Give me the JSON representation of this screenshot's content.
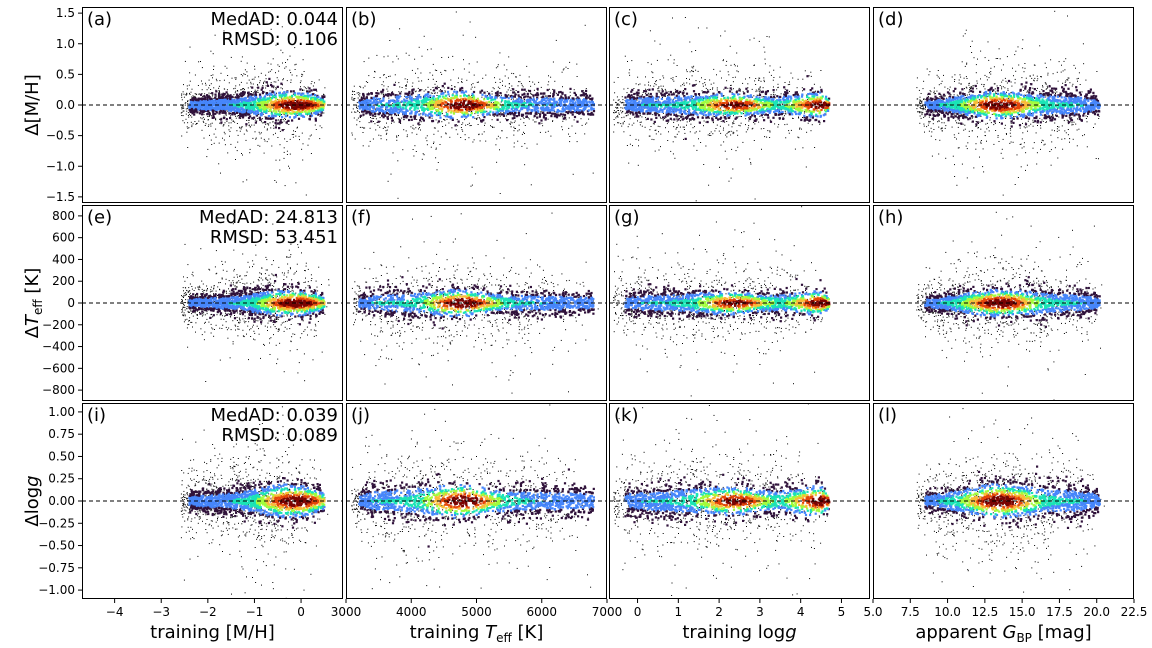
{
  "chart_data": {
    "type": "scatter",
    "description_kind": "3x4 grid of residual density scatter plots",
    "colormap": [
      "#30123b",
      "#4686fb",
      "#1ae4b6",
      "#a2fc3c",
      "#fabb39",
      "#e4460a",
      "#7a0403"
    ],
    "columns": [
      {
        "id": "mh",
        "xlabel_main": "training [M/H]",
        "xlabel_pre": "training [M/H]",
        "xlabel_sym": "",
        "xlabel_sub": "",
        "xlabel_post": "",
        "xlim": [
          -4.7,
          0.9
        ],
        "xticks": [
          -4,
          -3,
          -2,
          -1,
          0
        ],
        "xticklabels": [
          "−4",
          "−3",
          "−2",
          "−1",
          "0"
        ]
      },
      {
        "id": "teff",
        "xlabel_pre": "training ",
        "xlabel_sym": "T",
        "xlabel_sub": "eff",
        "xlabel_post": " [K]",
        "xlim": [
          3000,
          7000
        ],
        "xticks": [
          3000,
          4000,
          5000,
          6000,
          7000
        ],
        "xticklabels": [
          "3000",
          "4000",
          "5000",
          "6000",
          "7000"
        ]
      },
      {
        "id": "logg",
        "xlabel_pre": "training log",
        "xlabel_sym": "g",
        "xlabel_sub": "",
        "xlabel_post": "",
        "xlim": [
          -0.7,
          5.7
        ],
        "xticks": [
          0,
          1,
          2,
          3,
          4,
          5
        ],
        "xticklabels": [
          "0",
          "1",
          "2",
          "3",
          "4",
          "5"
        ]
      },
      {
        "id": "gbp",
        "xlabel_pre": "apparent ",
        "xlabel_sym": "G",
        "xlabel_sub": "BP",
        "xlabel_post": " [mag]",
        "xlim": [
          5.0,
          22.5
        ],
        "xticks": [
          5.0,
          7.5,
          10.0,
          12.5,
          15.0,
          17.5,
          20.0,
          22.5
        ],
        "xticklabels": [
          "5.0",
          "7.5",
          "10.0",
          "12.5",
          "15.0",
          "17.5",
          "20.0",
          "22.5"
        ]
      }
    ],
    "rows": [
      {
        "id": "dmh",
        "ylabel_pre": "Δ[M/H]",
        "ylabel_sym": "",
        "ylabel_sub": "",
        "ylabel_post": "",
        "ylim": [
          -1.6,
          1.6
        ],
        "yticks": [
          -1.5,
          -1.0,
          -0.5,
          0.0,
          0.5,
          1.0,
          1.5
        ],
        "yticklabels": [
          "−1.5",
          "−1.0",
          "−0.5",
          "0.0",
          "0.5",
          "1.0",
          "1.5"
        ],
        "med_ad": "MedAD: 0.044",
        "rmsd": "RMSD: 0.106",
        "scale": 0.1
      },
      {
        "id": "dteff",
        "ylabel_pre": "Δ",
        "ylabel_sym": "T",
        "ylabel_sub": "eff",
        "ylabel_post": " [K]",
        "ylim": [
          -900,
          900
        ],
        "yticks": [
          -800,
          -600,
          -400,
          -200,
          0,
          200,
          400,
          600,
          800
        ],
        "yticklabels": [
          "−800",
          "−600",
          "−400",
          "−200",
          "0",
          "200",
          "400",
          "600",
          "800"
        ],
        "med_ad": "MedAD: 24.813",
        "rmsd": "RMSD: 53.451",
        "scale": 55
      },
      {
        "id": "dlogg",
        "ylabel_pre": "Δlog",
        "ylabel_sym": "g",
        "ylabel_sub": "",
        "ylabel_post": "",
        "ylim": [
          -1.1,
          1.1
        ],
        "yticks": [
          -1.0,
          -0.75,
          -0.5,
          -0.25,
          0.0,
          0.25,
          0.5,
          0.75,
          1.0
        ],
        "yticklabels": [
          "−1.00",
          "−0.75",
          "−0.50",
          "−0.25",
          "0.00",
          "0.25",
          "0.50",
          "0.75",
          "1.00"
        ],
        "med_ad": "MedAD: 0.039",
        "rmsd": "RMSD: 0.089",
        "scale": 0.085
      }
    ],
    "panel_letters": [
      "(a)",
      "(b)",
      "(c)",
      "(d)",
      "(e)",
      "(f)",
      "(g)",
      "(h)",
      "(i)",
      "(j)",
      "(k)",
      "(l)"
    ],
    "reference_line": {
      "y": 0,
      "style": "dashed"
    },
    "density_envelopes": {
      "mh": [
        [
          -2.4,
          0.25
        ],
        [
          -2.1,
          0.45
        ],
        [
          -1.5,
          0.6
        ],
        [
          -1.0,
          0.85
        ],
        [
          -0.5,
          1.0
        ],
        [
          0.0,
          0.9
        ],
        [
          0.3,
          0.7
        ],
        [
          0.5,
          0.35
        ]
      ],
      "teff": [
        [
          3200,
          0.3
        ],
        [
          3400,
          0.8
        ],
        [
          4000,
          1.0
        ],
        [
          4800,
          1.0
        ],
        [
          5200,
          0.7
        ],
        [
          5800,
          0.75
        ],
        [
          6400,
          0.7
        ],
        [
          6800,
          0.55
        ]
      ],
      "logg": [
        [
          -0.3,
          0.5
        ],
        [
          0.2,
          0.8
        ],
        [
          1.0,
          0.9
        ],
        [
          2.4,
          0.8
        ],
        [
          3.0,
          0.6
        ],
        [
          4.0,
          0.8
        ],
        [
          4.5,
          0.9
        ],
        [
          4.7,
          0.2
        ]
      ],
      "gbp": [
        [
          8.5,
          0.3
        ],
        [
          9.5,
          0.55
        ],
        [
          11.0,
          0.8
        ],
        [
          13.0,
          1.0
        ],
        [
          16.0,
          0.95
        ],
        [
          18.5,
          0.9
        ],
        [
          19.8,
          0.6
        ],
        [
          20.2,
          0.2
        ]
      ]
    },
    "density_peaks": {
      "mh": [
        [
          -0.1,
          1.0
        ]
      ],
      "teff": [
        [
          4800,
          1.0
        ]
      ],
      "logg": [
        [
          2.4,
          0.9
        ],
        [
          4.6,
          1.0
        ]
      ],
      "gbp": [
        [
          13.5,
          1.0
        ]
      ]
    }
  }
}
